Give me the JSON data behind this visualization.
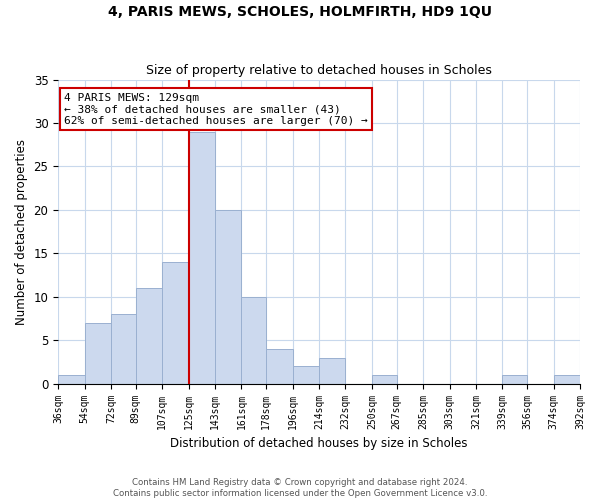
{
  "title": "4, PARIS MEWS, SCHOLES, HOLMFIRTH, HD9 1QU",
  "subtitle": "Size of property relative to detached houses in Scholes",
  "xlabel": "Distribution of detached houses by size in Scholes",
  "ylabel": "Number of detached properties",
  "bin_edges": [
    36,
    54,
    72,
    89,
    107,
    125,
    143,
    161,
    178,
    196,
    214,
    232,
    250,
    267,
    285,
    303,
    321,
    339,
    356,
    374,
    392
  ],
  "bar_heights": [
    1,
    7,
    8,
    11,
    14,
    29,
    20,
    10,
    4,
    2,
    3,
    0,
    1,
    0,
    0,
    0,
    0,
    1,
    0,
    1
  ],
  "bar_color": "#ccd9ee",
  "bar_edgecolor": "#9ab0d0",
  "property_line_x": 125,
  "property_size": 129,
  "ylim": [
    0,
    35
  ],
  "yticks": [
    0,
    5,
    10,
    15,
    20,
    25,
    30,
    35
  ],
  "annotation_text": "4 PARIS MEWS: 129sqm\n← 38% of detached houses are smaller (43)\n62% of semi-detached houses are larger (70) →",
  "annotation_boxcolor": "white",
  "annotation_edgecolor": "#cc0000",
  "red_line_color": "#cc0000",
  "footer_line1": "Contains HM Land Registry data © Crown copyright and database right 2024.",
  "footer_line2": "Contains public sector information licensed under the Open Government Licence v3.0.",
  "background_color": "#ffffff",
  "grid_color": "#c8d8ec"
}
